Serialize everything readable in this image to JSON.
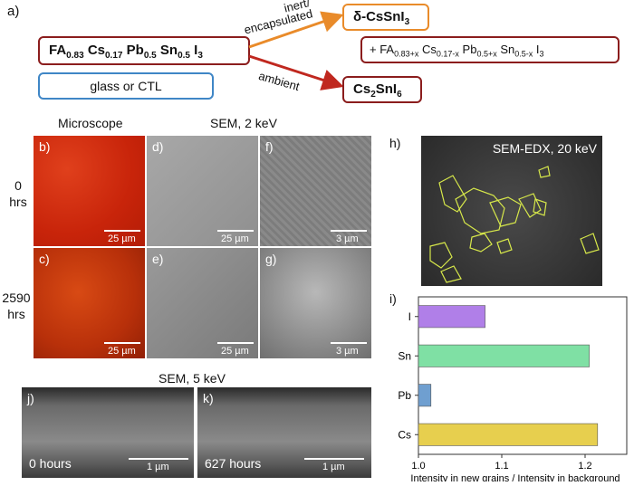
{
  "panel_a": {
    "label": "a)",
    "reactant_main": "FA",
    "reactant_fa_sub": "0.83",
    "reactant_cs": "Cs",
    "reactant_cs_sub": "0.17",
    "reactant_pb": "Pb",
    "reactant_pb_sub": "0.5",
    "reactant_sn": "Sn",
    "reactant_sn_sub": "0.5",
    "reactant_i": "I",
    "reactant_i_sub": "3",
    "substrate": "glass or CTL",
    "arrow_top_label_1": "inert/",
    "arrow_top_label_2": "encapsulated",
    "arrow_bottom_label": "ambient",
    "product_top": "δ-CsSnI",
    "product_top_sub": "3",
    "product_mid_plus": "+  FA",
    "product_mid_fa_sub": "0.83+x",
    "product_mid_cs": "Cs",
    "product_mid_cs_sub": "0.17-x",
    "product_mid_pb": "Pb",
    "product_mid_pb_sub": "0.5+x",
    "product_mid_sn": "Sn",
    "product_mid_sn_sub": "0.5-x",
    "product_mid_i": "I",
    "product_mid_i_sub": "3",
    "product_bottom": "Cs",
    "product_bottom_sub1": "2",
    "product_bottom_sn": "SnI",
    "product_bottom_sub2": "6",
    "colors": {
      "box_red": "#8b1d1d",
      "box_orange": "#e98b2a",
      "box_blue": "#3f86c6",
      "arrow_orange": "#e98b2a",
      "arrow_red": "#c0281f"
    }
  },
  "grid": {
    "col_microscope": "Microscope",
    "col_sem": "SEM, 2 keV",
    "row0_a": "0",
    "row0_b": "hrs",
    "row1_a": "2590",
    "row1_b": "hrs",
    "panels": {
      "b": {
        "label": "b)",
        "scale": "25 µm"
      },
      "c": {
        "label": "c)",
        "scale": "25 µm"
      },
      "d": {
        "label": "d)",
        "scale": "25 µm"
      },
      "e": {
        "label": "e)",
        "scale": "25 µm"
      },
      "f": {
        "label": "f)",
        "scale": "3 µm"
      },
      "g": {
        "label": "g)",
        "scale": "3 µm"
      }
    }
  },
  "panel_h": {
    "label": "h)",
    "title": "SEM-EDX, 20 keV"
  },
  "panel_i": {
    "label": "i)"
  },
  "bottom": {
    "title": "SEM, 5 keV",
    "j": {
      "label": "j)",
      "time": "0 hours",
      "scale": "1 µm"
    },
    "k": {
      "label": "k)",
      "time": "627 hours",
      "scale": "1 µm"
    }
  },
  "chart_data": {
    "type": "bar",
    "orientation": "horizontal",
    "categories": [
      "I",
      "Sn",
      "Pb",
      "Cs"
    ],
    "values": [
      1.08,
      1.205,
      1.015,
      1.215
    ],
    "colors": [
      "#b07fe8",
      "#7fe0a4",
      "#6f9fd0",
      "#e7cf4e"
    ],
    "xlabel": "Intensity in new grains / Intensity in background",
    "xlim": [
      1.0,
      1.25
    ],
    "xticks": [
      "1.0",
      "1.1",
      "1.2"
    ],
    "xtick_values": [
      1.0,
      1.1,
      1.2
    ]
  }
}
